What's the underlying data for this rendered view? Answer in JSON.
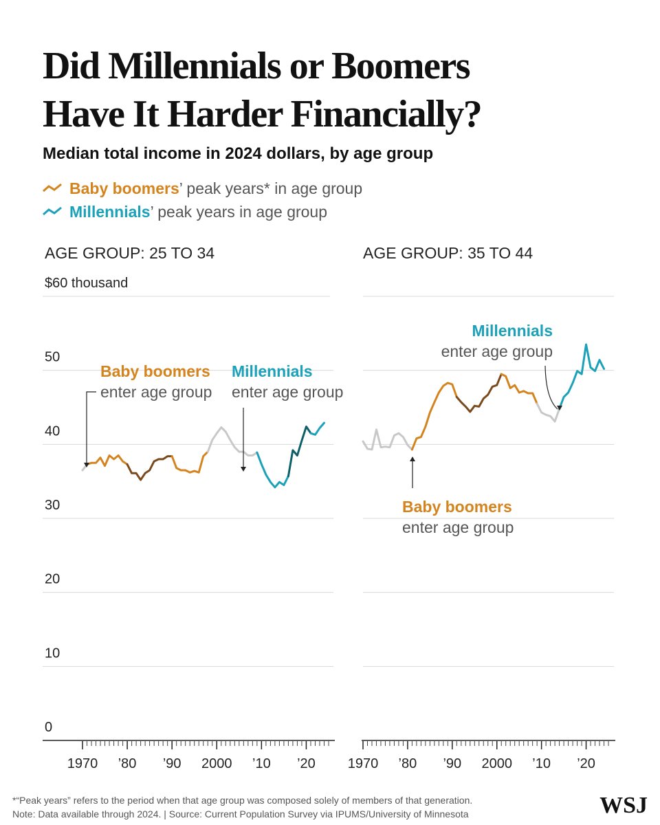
{
  "header": {
    "title": [
      "Did Millennials or Boomers",
      "Have It Harder Financially?"
    ],
    "subtitle": "Median total income in 2024 dollars, by age group",
    "legend": [
      {
        "name": "Baby boomers",
        "text": "’ peak years* in age group",
        "color": "#d4841e"
      },
      {
        "name": "Millennials",
        "text": "’ peak years in age group",
        "color": "#1ba1b8"
      }
    ]
  },
  "chart_data": [
    {
      "type": "line",
      "title": "AGE GROUP: 25 TO 34",
      "x": [
        1970,
        1971,
        1972,
        1973,
        1974,
        1975,
        1976,
        1977,
        1978,
        1979,
        1980,
        1981,
        1982,
        1983,
        1984,
        1985,
        1986,
        1987,
        1988,
        1989,
        1990,
        1991,
        1992,
        1993,
        1994,
        1995,
        1996,
        1997,
        1998,
        1999,
        2000,
        2001,
        2002,
        2003,
        2004,
        2005,
        2006,
        2007,
        2008,
        2009,
        2010,
        2011,
        2012,
        2013,
        2014,
        2015,
        2016,
        2017,
        2018,
        2019,
        2020,
        2021,
        2022,
        2023,
        2024
      ],
      "values": [
        36.5,
        37.3,
        37.5,
        37.5,
        38.2,
        37.1,
        38.5,
        38.0,
        38.5,
        37.7,
        37.3,
        36.1,
        36.1,
        35.2,
        36.1,
        36.5,
        37.7,
        38.0,
        38.0,
        38.4,
        38.4,
        36.8,
        36.5,
        36.5,
        36.2,
        36.4,
        36.2,
        38.4,
        39.0,
        40.6,
        41.5,
        42.3,
        41.7,
        40.6,
        39.6,
        39.0,
        39.0,
        38.5,
        38.5,
        38.9,
        37.3,
        35.9,
        34.9,
        34.2,
        34.9,
        34.5,
        35.7,
        39.2,
        38.5,
        40.5,
        42.4,
        41.5,
        41.3,
        42.2,
        42.9
      ],
      "segments": [
        {
          "from": 1970,
          "to": 1971,
          "color": "#c8c8c8"
        },
        {
          "from": 1971,
          "to": 1980,
          "color": "#d4841e"
        },
        {
          "from": 1980,
          "to": 1990,
          "color": "#7a4a1c"
        },
        {
          "from": 1990,
          "to": 1998,
          "color": "#d4841e"
        },
        {
          "from": 1998,
          "to": 2009,
          "color": "#c8c8c8"
        },
        {
          "from": 2009,
          "to": 2016,
          "color": "#1ba1b8"
        },
        {
          "from": 2016,
          "to": 2021,
          "color": "#0d5f6a"
        },
        {
          "from": 2021,
          "to": 2024,
          "color": "#1ba1b8"
        }
      ],
      "xlim": [
        1970,
        2025
      ],
      "xticks": [
        1970,
        {
          "value": 1980,
          "label": "’80"
        },
        {
          "value": 1990,
          "label": "’90"
        },
        2000,
        {
          "value": 2010,
          "label": "’10"
        },
        {
          "value": 2020,
          "label": "’20"
        }
      ],
      "xminor": 1,
      "ylim": [
        0,
        60
      ],
      "yticks": [
        0,
        10,
        20,
        30,
        40,
        50,
        {
          "value": 60,
          "label": "$60 thousand"
        }
      ],
      "ytick_labels": true,
      "grid": true,
      "annotations": [
        {
          "title": "Baby boomers",
          "text": "enter age group",
          "color": "#d4841e"
        },
        {
          "title": "Millennials",
          "text": "enter age group",
          "color": "#1ba1b8"
        }
      ]
    },
    {
      "type": "line",
      "title": "AGE GROUP: 35 TO 44",
      "x": [
        1970,
        1971,
        1972,
        1973,
        1974,
        1975,
        1976,
        1977,
        1978,
        1979,
        1980,
        1981,
        1982,
        1983,
        1984,
        1985,
        1986,
        1987,
        1988,
        1989,
        1990,
        1991,
        1992,
        1993,
        1994,
        1995,
        1996,
        1997,
        1998,
        1999,
        2000,
        2001,
        2002,
        2003,
        2004,
        2005,
        2006,
        2007,
        2008,
        2009,
        2010,
        2011,
        2012,
        2013,
        2014,
        2015,
        2016,
        2017,
        2018,
        2019,
        2020,
        2021,
        2022,
        2023,
        2024
      ],
      "values": [
        40.4,
        39.4,
        39.3,
        42.0,
        39.6,
        39.7,
        39.6,
        41.2,
        41.5,
        41.0,
        39.9,
        39.3,
        40.8,
        41.0,
        42.4,
        44.3,
        45.7,
        47.0,
        47.9,
        48.3,
        48.1,
        46.4,
        45.7,
        45.1,
        44.4,
        45.2,
        45.1,
        46.2,
        46.7,
        47.8,
        48.0,
        49.5,
        49.2,
        47.6,
        48.0,
        47.0,
        47.2,
        46.9,
        46.9,
        45.5,
        44.3,
        44.0,
        43.8,
        43.1,
        44.8,
        46.4,
        47.0,
        48.3,
        49.9,
        49.5,
        53.5,
        50.4,
        49.9,
        51.4,
        50.2
      ],
      "segments": [
        {
          "from": 1970,
          "to": 1981,
          "color": "#c8c8c8"
        },
        {
          "from": 1981,
          "to": 1991,
          "color": "#d4841e"
        },
        {
          "from": 1991,
          "to": 2001,
          "color": "#7a4a1c"
        },
        {
          "from": 2001,
          "to": 2009,
          "color": "#d4841e"
        },
        {
          "from": 2009,
          "to": 2014,
          "color": "#c8c8c8"
        },
        {
          "from": 2014,
          "to": 2024,
          "color": "#1ba1b8"
        }
      ],
      "xlim": [
        1970,
        2025
      ],
      "xticks": [
        1970,
        {
          "value": 1980,
          "label": "’80"
        },
        {
          "value": 1990,
          "label": "’90"
        },
        2000,
        {
          "value": 2010,
          "label": "’10"
        },
        {
          "value": 2020,
          "label": "’20"
        }
      ],
      "xminor": 1,
      "ylim": [
        0,
        60
      ],
      "yticks": [
        0,
        10,
        20,
        30,
        40,
        50,
        60
      ],
      "ytick_labels": false,
      "grid": true,
      "annotations": [
        {
          "title": "Millennials",
          "text": "enter age group",
          "color": "#1ba1b8"
        },
        {
          "title": "Baby boomers",
          "text": "enter age group",
          "color": "#d4841e"
        }
      ]
    }
  ],
  "footer": {
    "notes": [
      "*“Peak years” refers to the period when that age group was composed solely of members of that generation.",
      "Note: Data available through 2024. | Source: Current Population Survey via IPUMS/University of Minnesota"
    ],
    "logo": "WSJ"
  }
}
